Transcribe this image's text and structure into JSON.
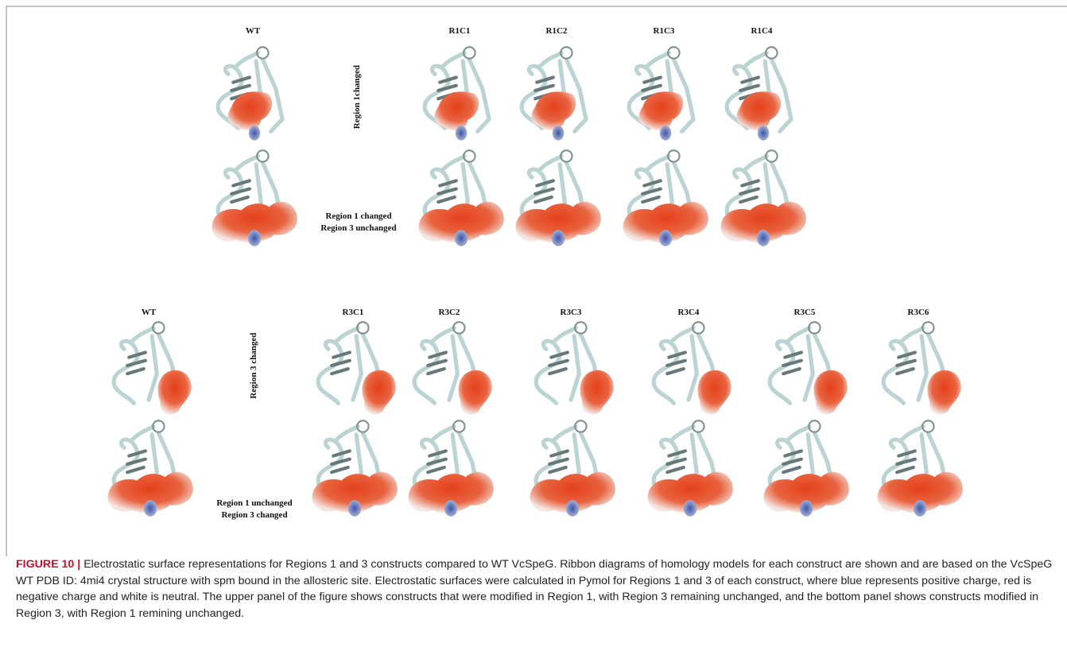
{
  "top_panel": {
    "wt_label": "WT",
    "columns": [
      "R1C1",
      "R1C2",
      "R1C3",
      "R1C4"
    ],
    "row_labels": [
      [
        "Region 1changed"
      ],
      [
        "Region 1 changed",
        "Region 3 unchanged"
      ]
    ]
  },
  "bottom_panel": {
    "wt_label": "WT",
    "columns": [
      "R3C1",
      "R3C2",
      "R3C3",
      "R3C4",
      "R3C5",
      "R3C6"
    ],
    "row_labels": [
      [
        "Region 3 changed"
      ],
      [
        "Region 1 unchanged",
        "Region 3 changed"
      ]
    ]
  },
  "caption": {
    "label": "FIGURE 10 |",
    "text": "Electrostatic surface representations for Regions 1 and 3 constructs compared to WT VcSpeG. Ribbon diagrams of homology models for each construct are shown and are based on the VcSpeG WT PDB ID: 4mi4 crystal structure with spm bound in the allosteric site. Electrostatic surfaces were calculated in Pymol for Regions 1 and 3 of each construct, where blue represents positive charge, red is negative charge and white is neutral. The upper panel of the figure shows constructs that were modified in Region 1, with Region 3 remaining unchanged, and the bottom panel shows constructs modified in Region 3, with Region 1 remining unchanged."
  }
}
